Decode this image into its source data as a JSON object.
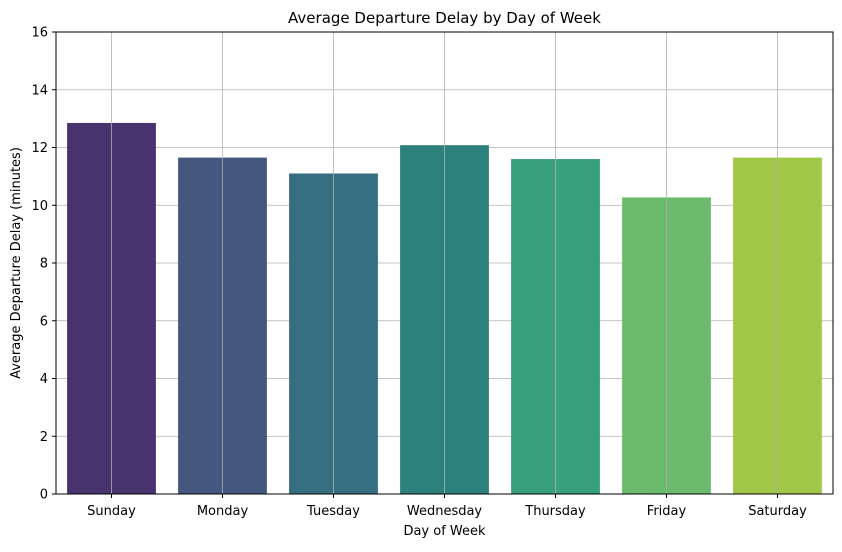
{
  "chart_data": {
    "type": "bar",
    "title": "Average Departure Delay by Day of Week",
    "xlabel": "Day of Week",
    "ylabel": "Average Departure Delay (minutes)",
    "categories": [
      "Sunday",
      "Monday",
      "Tuesday",
      "Wednesday",
      "Thursday",
      "Friday",
      "Saturday"
    ],
    "values": [
      12.85,
      11.65,
      11.1,
      12.08,
      11.6,
      10.27,
      11.65
    ],
    "colors": [
      "#48336f",
      "#43577f",
      "#366e81",
      "#2c817c",
      "#389f7c",
      "#6abb6b",
      "#a1c648"
    ],
    "ylim": [
      0,
      16
    ],
    "yticks": [
      0,
      2,
      4,
      6,
      8,
      10,
      12,
      14,
      16
    ],
    "grid": true,
    "legend": "none"
  }
}
